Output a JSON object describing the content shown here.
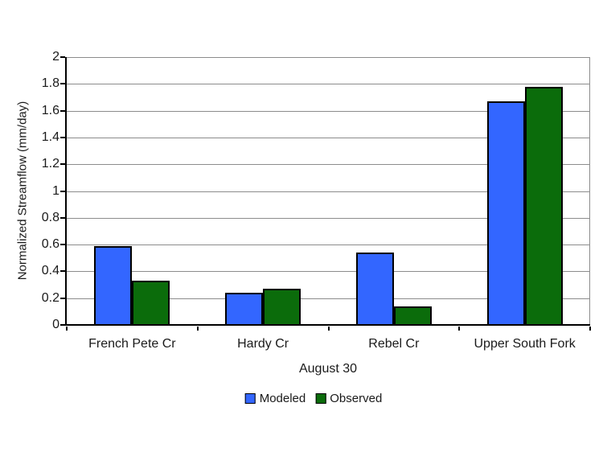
{
  "chart_data": {
    "type": "bar",
    "title": "",
    "categories": [
      "French Pete Cr",
      "Hardy Cr",
      "Rebel Cr",
      "Upper South Fork"
    ],
    "series": [
      {
        "name": "Modeled",
        "color": "#3366FF",
        "values": [
          0.59,
          0.24,
          0.54,
          1.67
        ]
      },
      {
        "name": "Observed",
        "color": "#0B6C0B",
        "values": [
          0.33,
          0.27,
          0.14,
          1.78
        ]
      }
    ],
    "xlabel": "August 30",
    "ylabel": "Normalized Streamflow (mm/day)",
    "ylim": [
      0,
      2
    ],
    "ytick_step": 0.2,
    "ytick_labels": [
      "0",
      "0.2",
      "0.4",
      "0.6",
      "0.8",
      "1",
      "1.2",
      "1.4",
      "1.6",
      "1.8",
      "2"
    ],
    "grid": true,
    "legend_position": "bottom"
  },
  "colors": {
    "background": "#FFFFFF",
    "gridline": "#8C8C8C",
    "axis": "#000000",
    "bar_border": "#000000",
    "text": "#1A1A1A"
  }
}
